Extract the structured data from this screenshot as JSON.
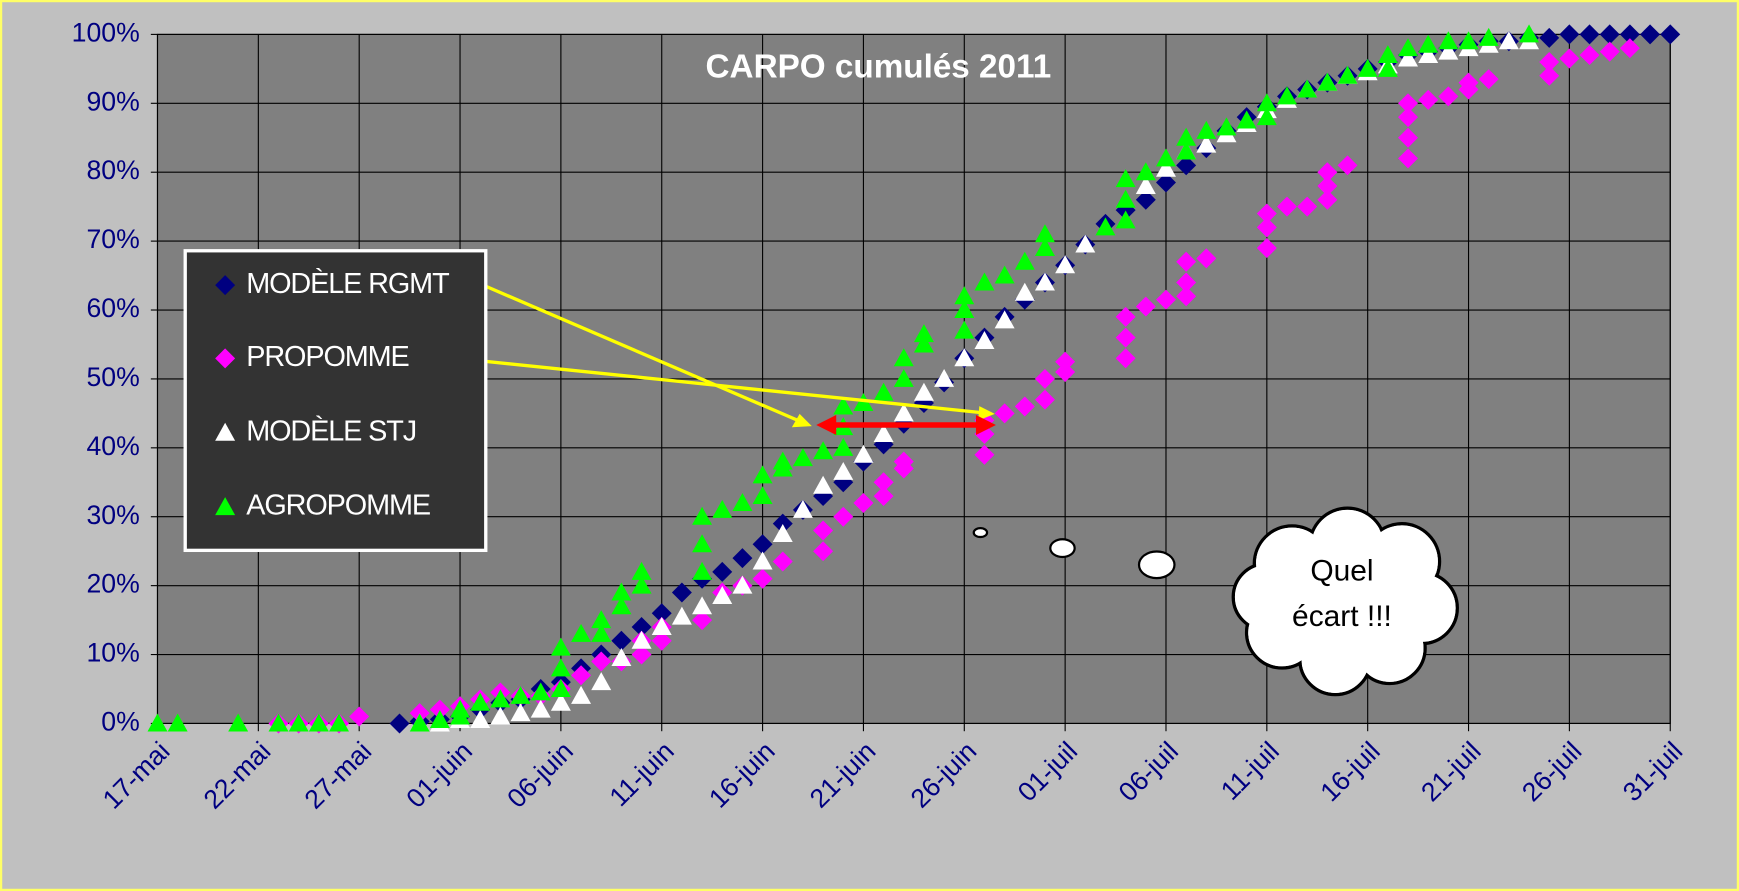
{
  "chart_data": {
    "type": "scatter",
    "title": "CARPO cumulés 2011",
    "xlim": [
      137,
      212
    ],
    "xticks": [
      {
        "value": 137,
        "label": "17-mai"
      },
      {
        "value": 142,
        "label": "22-mai"
      },
      {
        "value": 147,
        "label": "27-mai"
      },
      {
        "value": 152,
        "label": "01-juin"
      },
      {
        "value": 157,
        "label": "06-juin"
      },
      {
        "value": 162,
        "label": "11-juin"
      },
      {
        "value": 167,
        "label": "16-juin"
      },
      {
        "value": 172,
        "label": "21-juin"
      },
      {
        "value": 177,
        "label": "26-juin"
      },
      {
        "value": 182,
        "label": "01-juil"
      },
      {
        "value": 187,
        "label": "06-juil"
      },
      {
        "value": 192,
        "label": "11-juil"
      },
      {
        "value": 197,
        "label": "16-juil"
      },
      {
        "value": 202,
        "label": "21-juil"
      },
      {
        "value": 207,
        "label": "26-juil"
      },
      {
        "value": 212,
        "label": "31-juil"
      }
    ],
    "ylim": [
      0,
      100
    ],
    "yticks": [
      {
        "value": 0,
        "label": "0%"
      },
      {
        "value": 10,
        "label": "10%"
      },
      {
        "value": 20,
        "label": "20%"
      },
      {
        "value": 30,
        "label": "30%"
      },
      {
        "value": 40,
        "label": "40%"
      },
      {
        "value": 50,
        "label": "50%"
      },
      {
        "value": 60,
        "label": "60%"
      },
      {
        "value": 70,
        "label": "70%"
      },
      {
        "value": 80,
        "label": "80%"
      },
      {
        "value": 90,
        "label": "90%"
      },
      {
        "value": 100,
        "label": "100%"
      }
    ],
    "grid": true,
    "legend": "left",
    "annotation": [
      "Quel",
      "écart !!!"
    ],
    "series": [
      {
        "name": "MODÈLE RGMT",
        "color": "#000080",
        "marker": "diamond",
        "x": [
          149,
          150,
          151,
          152,
          153,
          154,
          155,
          156,
          157,
          158,
          159,
          160,
          161,
          162,
          163,
          164,
          165,
          166,
          167,
          168,
          169,
          170,
          171,
          172,
          173,
          174,
          175,
          176,
          177,
          178,
          179,
          180,
          181,
          182,
          183,
          184,
          185,
          186,
          187,
          188,
          189,
          190,
          191,
          192,
          193,
          194,
          195,
          196,
          197,
          198,
          199,
          200,
          201,
          202,
          203,
          204,
          205,
          206,
          207,
          208,
          209,
          210,
          211,
          212
        ],
        "values": [
          0,
          0.3,
          0.6,
          1,
          2,
          3,
          3.5,
          5,
          6,
          8,
          10,
          12,
          14,
          16,
          19,
          21,
          22,
          24,
          26,
          29,
          31,
          33,
          35,
          38,
          40.5,
          43.5,
          46.5,
          49.5,
          53,
          56,
          59,
          61.5,
          64,
          66.5,
          69.5,
          72.5,
          74.5,
          76,
          78.5,
          81,
          83.5,
          86,
          88,
          89.5,
          91,
          92,
          93,
          94,
          95,
          96,
          97,
          97.5,
          98,
          98.5,
          99,
          99,
          99.5,
          99.5,
          100,
          100,
          100,
          100,
          100,
          100
        ]
      },
      {
        "name": "PROPOMME",
        "color": "#ff00ff",
        "marker": "diamond",
        "x": [
          143,
          144,
          145,
          146,
          147,
          150,
          151,
          152,
          153,
          154,
          155,
          156,
          157,
          158,
          159,
          160,
          161,
          161,
          162,
          162,
          164,
          165,
          166,
          167,
          168,
          170,
          170,
          171,
          172,
          173,
          173,
          174,
          174,
          178,
          178,
          178,
          179,
          180,
          181,
          181,
          182,
          182,
          185,
          185,
          185,
          186,
          187,
          188,
          188,
          188,
          189,
          192,
          192,
          192,
          193,
          194,
          195,
          195,
          195,
          196,
          199,
          199,
          199,
          199,
          200,
          201,
          202,
          202,
          203,
          206,
          206,
          207,
          208,
          209,
          210
        ],
        "values": [
          0,
          0,
          0,
          0,
          1,
          1.5,
          2,
          2.5,
          3.5,
          4.5,
          4,
          4,
          5,
          7,
          9,
          9,
          10,
          12,
          12,
          14,
          15,
          19,
          20,
          21,
          23.5,
          25,
          28,
          30,
          32,
          33,
          35,
          37,
          38,
          39,
          42,
          44,
          45,
          46,
          47,
          50,
          51,
          52.5,
          53,
          56,
          59,
          60.5,
          61.5,
          62,
          64,
          67,
          67.5,
          69,
          72,
          74,
          75,
          75,
          76,
          78,
          80,
          81,
          82,
          85,
          88,
          90,
          90.5,
          91,
          92,
          93,
          93.5,
          94,
          96,
          96.5,
          97,
          97.5,
          98
        ]
      },
      {
        "name": "MODÈLE STJ",
        "color": "#ffffff",
        "marker": "triangle",
        "x": [
          150,
          151,
          152,
          153,
          154,
          155,
          156,
          157,
          158,
          159,
          160,
          161,
          162,
          163,
          164,
          165,
          166,
          167,
          168,
          169,
          170,
          171,
          172,
          173,
          174,
          175,
          176,
          177,
          178,
          179,
          180,
          181,
          182,
          183,
          186,
          187,
          188,
          189,
          190,
          191,
          192,
          193,
          194,
          195,
          196,
          197,
          198,
          199,
          200,
          201,
          202,
          203,
          204,
          205
        ],
        "values": [
          0,
          0,
          0.5,
          0.5,
          1,
          1.5,
          2,
          3,
          4,
          6,
          9.5,
          12,
          14,
          15.5,
          17,
          18.5,
          20,
          23.5,
          27.5,
          31,
          34.5,
          36.5,
          39,
          42,
          45,
          48,
          50,
          53,
          55.5,
          58.5,
          62.5,
          64,
          66.5,
          69.5,
          78,
          80.5,
          83,
          84,
          85.5,
          87,
          89,
          90.5,
          92,
          93,
          94,
          94.5,
          95.5,
          96.5,
          97,
          97.5,
          98,
          98.5,
          99,
          99
        ]
      },
      {
        "name": "AGROPOMME",
        "color": "#00ff00",
        "marker": "triangle",
        "x": [
          137,
          138,
          141,
          143,
          144,
          145,
          146,
          150,
          151,
          152,
          152,
          153,
          154,
          155,
          156,
          157,
          157,
          157,
          158,
          159,
          159,
          160,
          160,
          161,
          161,
          164,
          164,
          164,
          165,
          166,
          167,
          167,
          168,
          168,
          169,
          170,
          171,
          171,
          171,
          172,
          173,
          174,
          174,
          175,
          175,
          177,
          177,
          177,
          178,
          179,
          180,
          181,
          181,
          184,
          185,
          185,
          185,
          186,
          187,
          188,
          188,
          189,
          190,
          191,
          192,
          192,
          193,
          194,
          195,
          196,
          197,
          198,
          198,
          199,
          200,
          201,
          202,
          203,
          205
        ],
        "values": [
          0,
          0,
          0,
          0,
          0,
          0,
          0,
          0,
          0.5,
          1,
          2,
          3,
          3.5,
          4,
          4.5,
          5,
          8,
          11,
          13,
          13,
          15,
          17,
          19,
          20,
          22,
          22,
          26,
          30,
          31,
          32,
          33,
          36,
          37,
          38,
          38.5,
          39.5,
          40,
          43,
          46,
          46.5,
          48,
          50,
          53,
          55,
          56.5,
          57,
          60,
          62,
          64,
          65,
          67,
          69,
          71,
          72,
          73,
          76,
          79,
          80,
          82,
          83,
          85,
          86,
          86.5,
          87.5,
          88,
          90,
          91,
          92,
          93,
          94,
          95,
          95,
          97,
          98,
          98.5,
          99,
          99,
          99.5,
          100
        ]
      }
    ]
  }
}
